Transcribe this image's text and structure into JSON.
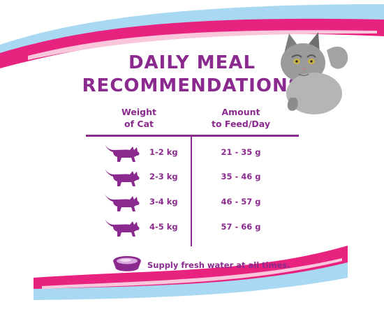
{
  "title": {
    "line1": "DAILY MEAL",
    "line2": "RECOMMENDATIONS"
  },
  "columns": {
    "weight": {
      "line1": "Weight",
      "line2": "of Cat"
    },
    "amount": {
      "line1": "Amount",
      "line2": "to Feed/Day"
    }
  },
  "rows": [
    {
      "weight": "1-2 kg",
      "amount": "21 - 35 g"
    },
    {
      "weight": "2-3 kg",
      "amount": "35 - 46 g"
    },
    {
      "weight": "3-4 kg",
      "amount": "46 - 57 g"
    },
    {
      "weight": "4-5 kg",
      "amount": "57 - 66 g"
    }
  ],
  "footer": {
    "water_note": "Supply fresh water at all times."
  },
  "colors": {
    "purple": "#8b2a8e",
    "pink": "#e8237f",
    "light_blue": "#a9d8f2",
    "light_pink": "#f9c6dc"
  },
  "icons": [
    "cat-silhouette-icon",
    "water-bowl-icon",
    "cat-photo"
  ]
}
